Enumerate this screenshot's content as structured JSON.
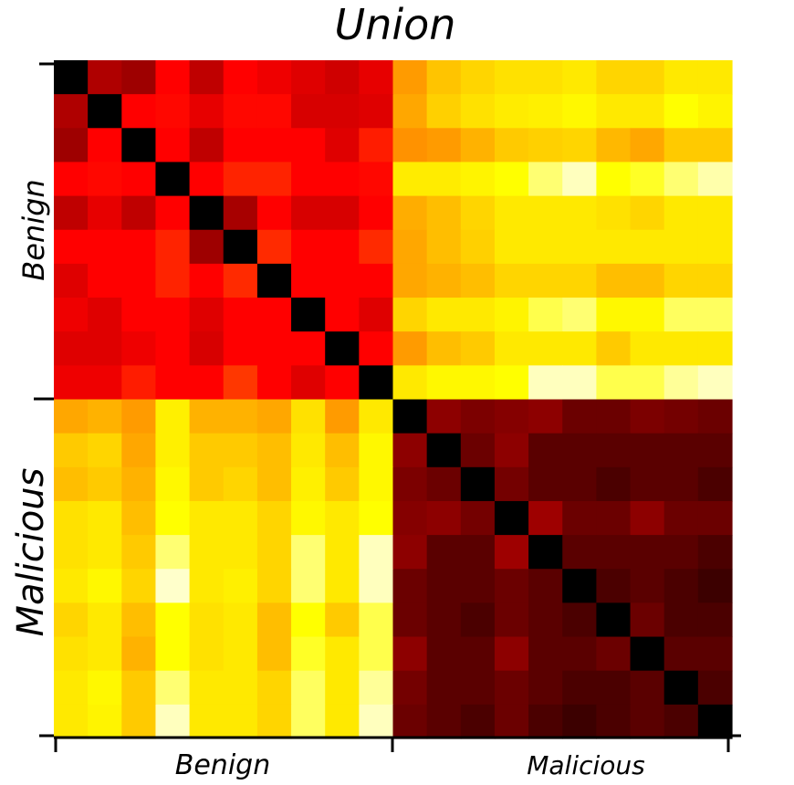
{
  "chart_data": {
    "type": "heatmap",
    "title": "Union",
    "x_groups": [
      "Benign",
      "Malicious"
    ],
    "y_groups": [
      "Benign",
      "Malicious"
    ],
    "n_per_group": 10,
    "colormap": "hot",
    "colors": {
      "black": "#000000",
      "darkred": "#5a0000",
      "red": "#ff0000",
      "orange": "#ff8c00",
      "yellow": "#ffff00",
      "white": "#ffffff"
    },
    "values": [
      [
        0.0,
        0.22,
        0.2,
        0.32,
        0.24,
        0.32,
        0.3,
        0.28,
        0.26,
        0.29,
        0.6,
        0.67,
        0.7,
        0.72,
        0.72,
        0.74,
        0.7,
        0.7,
        0.74,
        0.74
      ],
      [
        0.22,
        0.0,
        0.32,
        0.33,
        0.29,
        0.33,
        0.33,
        0.27,
        0.27,
        0.28,
        0.62,
        0.69,
        0.72,
        0.75,
        0.76,
        0.78,
        0.74,
        0.74,
        0.8,
        0.77
      ],
      [
        0.2,
        0.32,
        0.0,
        0.32,
        0.24,
        0.32,
        0.32,
        0.32,
        0.28,
        0.36,
        0.58,
        0.6,
        0.64,
        0.68,
        0.69,
        0.7,
        0.65,
        0.62,
        0.68,
        0.68
      ],
      [
        0.32,
        0.33,
        0.32,
        0.0,
        0.32,
        0.37,
        0.37,
        0.32,
        0.32,
        0.33,
        0.75,
        0.75,
        0.77,
        0.8,
        0.86,
        0.9,
        0.8,
        0.82,
        0.86,
        0.89
      ],
      [
        0.24,
        0.29,
        0.24,
        0.32,
        0.0,
        0.21,
        0.32,
        0.27,
        0.27,
        0.32,
        0.63,
        0.66,
        0.7,
        0.74,
        0.74,
        0.74,
        0.72,
        0.7,
        0.74,
        0.74
      ],
      [
        0.32,
        0.32,
        0.32,
        0.37,
        0.2,
        0.0,
        0.38,
        0.32,
        0.32,
        0.38,
        0.62,
        0.66,
        0.69,
        0.74,
        0.74,
        0.74,
        0.74,
        0.74,
        0.74,
        0.74
      ],
      [
        0.28,
        0.32,
        0.32,
        0.37,
        0.32,
        0.38,
        0.0,
        0.32,
        0.32,
        0.32,
        0.62,
        0.64,
        0.66,
        0.7,
        0.7,
        0.7,
        0.66,
        0.66,
        0.7,
        0.7
      ],
      [
        0.3,
        0.28,
        0.32,
        0.32,
        0.28,
        0.32,
        0.32,
        0.0,
        0.32,
        0.28,
        0.7,
        0.74,
        0.74,
        0.77,
        0.84,
        0.86,
        0.78,
        0.78,
        0.85,
        0.85
      ],
      [
        0.28,
        0.28,
        0.3,
        0.32,
        0.27,
        0.32,
        0.32,
        0.32,
        0.0,
        0.32,
        0.6,
        0.66,
        0.68,
        0.74,
        0.74,
        0.74,
        0.68,
        0.74,
        0.74,
        0.74
      ],
      [
        0.3,
        0.3,
        0.36,
        0.32,
        0.32,
        0.4,
        0.32,
        0.28,
        0.32,
        0.0,
        0.74,
        0.78,
        0.78,
        0.8,
        0.9,
        0.9,
        0.84,
        0.84,
        0.88,
        0.9
      ],
      [
        0.62,
        0.64,
        0.6,
        0.76,
        0.64,
        0.64,
        0.62,
        0.72,
        0.6,
        0.74,
        0.0,
        0.18,
        0.16,
        0.17,
        0.18,
        0.14,
        0.14,
        0.16,
        0.15,
        0.14
      ],
      [
        0.68,
        0.7,
        0.62,
        0.76,
        0.68,
        0.68,
        0.66,
        0.74,
        0.66,
        0.78,
        0.18,
        0.0,
        0.14,
        0.18,
        0.12,
        0.12,
        0.12,
        0.12,
        0.12,
        0.12
      ],
      [
        0.66,
        0.68,
        0.64,
        0.78,
        0.68,
        0.7,
        0.66,
        0.76,
        0.68,
        0.78,
        0.16,
        0.14,
        0.0,
        0.15,
        0.12,
        0.12,
        0.1,
        0.12,
        0.12,
        0.1
      ],
      [
        0.72,
        0.74,
        0.66,
        0.8,
        0.74,
        0.74,
        0.7,
        0.78,
        0.74,
        0.8,
        0.17,
        0.18,
        0.15,
        0.0,
        0.2,
        0.14,
        0.14,
        0.18,
        0.14,
        0.14
      ],
      [
        0.72,
        0.74,
        0.68,
        0.86,
        0.74,
        0.74,
        0.7,
        0.86,
        0.74,
        0.9,
        0.18,
        0.12,
        0.12,
        0.2,
        0.0,
        0.12,
        0.12,
        0.12,
        0.12,
        0.1
      ],
      [
        0.74,
        0.78,
        0.7,
        0.92,
        0.74,
        0.76,
        0.7,
        0.86,
        0.74,
        0.9,
        0.14,
        0.12,
        0.12,
        0.14,
        0.12,
        0.0,
        0.1,
        0.12,
        0.1,
        0.08
      ],
      [
        0.7,
        0.74,
        0.66,
        0.8,
        0.72,
        0.74,
        0.66,
        0.8,
        0.68,
        0.84,
        0.14,
        0.12,
        0.1,
        0.14,
        0.12,
        0.1,
        0.0,
        0.14,
        0.1,
        0.1
      ],
      [
        0.72,
        0.74,
        0.64,
        0.8,
        0.72,
        0.74,
        0.66,
        0.82,
        0.74,
        0.84,
        0.18,
        0.12,
        0.12,
        0.18,
        0.12,
        0.12,
        0.14,
        0.0,
        0.12,
        0.12
      ],
      [
        0.74,
        0.78,
        0.68,
        0.86,
        0.74,
        0.74,
        0.7,
        0.85,
        0.74,
        0.88,
        0.15,
        0.12,
        0.12,
        0.14,
        0.12,
        0.1,
        0.1,
        0.12,
        0.0,
        0.1
      ],
      [
        0.74,
        0.77,
        0.68,
        0.9,
        0.74,
        0.74,
        0.7,
        0.85,
        0.74,
        0.9,
        0.14,
        0.12,
        0.1,
        0.14,
        0.1,
        0.08,
        0.1,
        0.12,
        0.1,
        0.0
      ]
    ],
    "grid": false,
    "legend": "none"
  }
}
